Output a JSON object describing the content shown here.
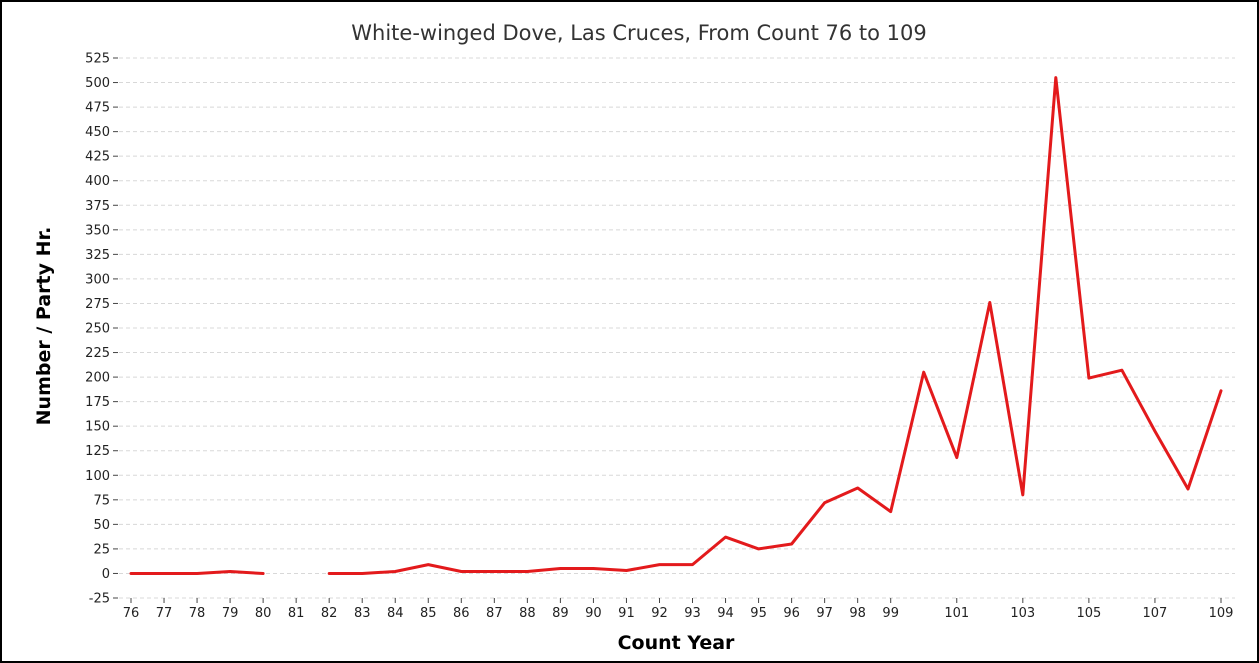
{
  "chart_data": {
    "type": "line",
    "title": "White-winged Dove, Las Cruces,  From Count 76 to 109",
    "xlabel": "Count Year",
    "ylabel": "Number / Party Hr.",
    "ylim": [
      -25,
      525
    ],
    "yticks": [
      -25,
      0,
      25,
      50,
      75,
      100,
      125,
      150,
      175,
      200,
      225,
      250,
      275,
      300,
      325,
      350,
      375,
      400,
      425,
      450,
      475,
      500,
      525
    ],
    "x": [
      76,
      77,
      78,
      79,
      80,
      81,
      82,
      83,
      84,
      85,
      86,
      87,
      88,
      89,
      90,
      91,
      92,
      93,
      94,
      95,
      96,
      97,
      98,
      99,
      100,
      101,
      102,
      103,
      104,
      105,
      106,
      107,
      108,
      109
    ],
    "xtick_labels": [
      "76",
      "77",
      "78",
      "79",
      "80",
      "81",
      "82",
      "83",
      "84",
      "85",
      "86",
      "87",
      "88",
      "89",
      "90",
      "91",
      "92",
      "93",
      "94",
      "95",
      "96",
      "97",
      "98",
      "99",
      "101",
      "103",
      "105",
      "107",
      "109"
    ],
    "xtick_values": [
      76,
      77,
      78,
      79,
      80,
      81,
      82,
      83,
      84,
      85,
      86,
      87,
      88,
      89,
      90,
      91,
      92,
      93,
      94,
      95,
      96,
      97,
      98,
      99,
      101,
      103,
      105,
      107,
      109
    ],
    "series": [
      {
        "color": "#e31a1c",
        "values": [
          0,
          0,
          0,
          2,
          0,
          null,
          0,
          0,
          2,
          9,
          2,
          2,
          2,
          5,
          5,
          3,
          9,
          9,
          37,
          25,
          30,
          72,
          87,
          63,
          205,
          118,
          276,
          80,
          505,
          199,
          207,
          145,
          86,
          186
        ]
      }
    ],
    "grid": true,
    "legend": "none"
  }
}
